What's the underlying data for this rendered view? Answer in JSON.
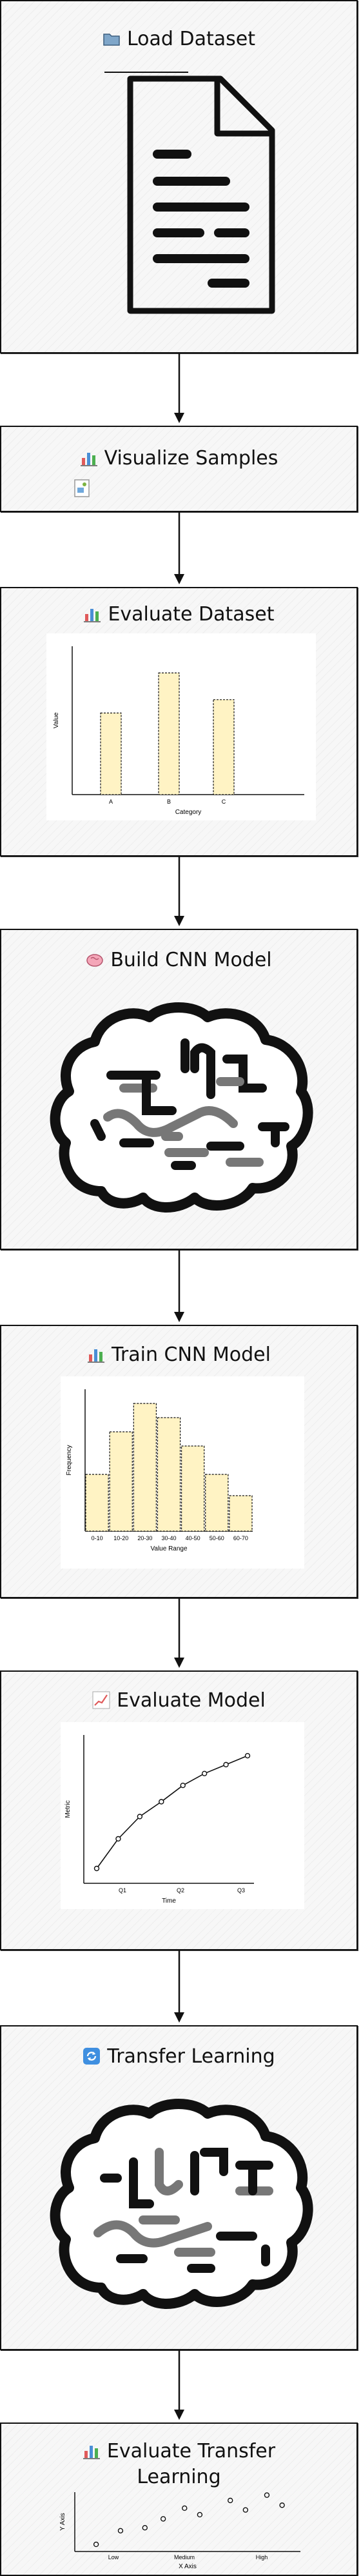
{
  "nodes": {
    "load_dataset": "Load Dataset",
    "visualize_samples": "Visualize Samples",
    "evaluate_dataset": "Evaluate Dataset",
    "build_cnn": "Build CNN Model",
    "train_cnn": "Train CNN Model",
    "evaluate_model": "Evaluate Model",
    "transfer_learning": "Transfer Learning",
    "evaluate_transfer_line1": "Evaluate Transfer",
    "evaluate_transfer_line2": "Learning"
  },
  "icons": {
    "load_dataset": "folder-icon",
    "visualize_samples": "bar-chart-icon",
    "evaluate_dataset": "bar-chart-icon",
    "build_cnn": "brain-icon",
    "train_cnn": "bar-chart-icon",
    "evaluate_model": "line-chart-icon",
    "transfer_learning": "refresh-icon",
    "evaluate_transfer": "bar-chart-icon"
  },
  "colors": {
    "bar_fill": "#fff3c4",
    "stroke": "#111111",
    "node_bg": "#f7f7f7"
  },
  "chart_data": [
    {
      "type": "bar",
      "categories": [
        "A",
        "B",
        "C"
      ],
      "values": [
        0.55,
        0.82,
        0.64
      ],
      "xlabel": "Category",
      "ylabel": "Value",
      "ylim": [
        0,
        1
      ]
    },
    {
      "type": "bar",
      "categories": [
        "0-10",
        "10-20",
        "20-30",
        "30-40",
        "40-50",
        "50-60",
        "60-70"
      ],
      "values": [
        4,
        7,
        9,
        8,
        6,
        4,
        2.5
      ],
      "xlabel": "Value Range",
      "ylabel": "Frequency",
      "ylim": [
        0,
        10
      ]
    },
    {
      "type": "line",
      "x": [
        0,
        1,
        2,
        3,
        4,
        5,
        6,
        7
      ],
      "x_ticks": [
        "Q1",
        "Q2",
        "Q3"
      ],
      "y": [
        0.1,
        0.3,
        0.45,
        0.55,
        0.66,
        0.74,
        0.8,
        0.86
      ],
      "xlabel": "Time",
      "ylabel": "Metric",
      "ylim": [
        0,
        1
      ]
    },
    {
      "type": "scatter",
      "x_ticks": [
        "Low",
        "Medium",
        "High"
      ],
      "points": [
        {
          "x": 0.35,
          "y": 0.12
        },
        {
          "x": 0.75,
          "y": 0.35
        },
        {
          "x": 1.15,
          "y": 0.4
        },
        {
          "x": 1.45,
          "y": 0.55
        },
        {
          "x": 1.8,
          "y": 0.73
        },
        {
          "x": 2.05,
          "y": 0.62
        },
        {
          "x": 2.55,
          "y": 0.86
        },
        {
          "x": 2.8,
          "y": 0.7
        },
        {
          "x": 3.15,
          "y": 0.95
        },
        {
          "x": 3.4,
          "y": 0.78
        }
      ],
      "xlabel": "X Axis",
      "ylabel": "Y Axis",
      "xlim": [
        0,
        3.7
      ],
      "ylim": [
        0,
        1
      ]
    }
  ]
}
